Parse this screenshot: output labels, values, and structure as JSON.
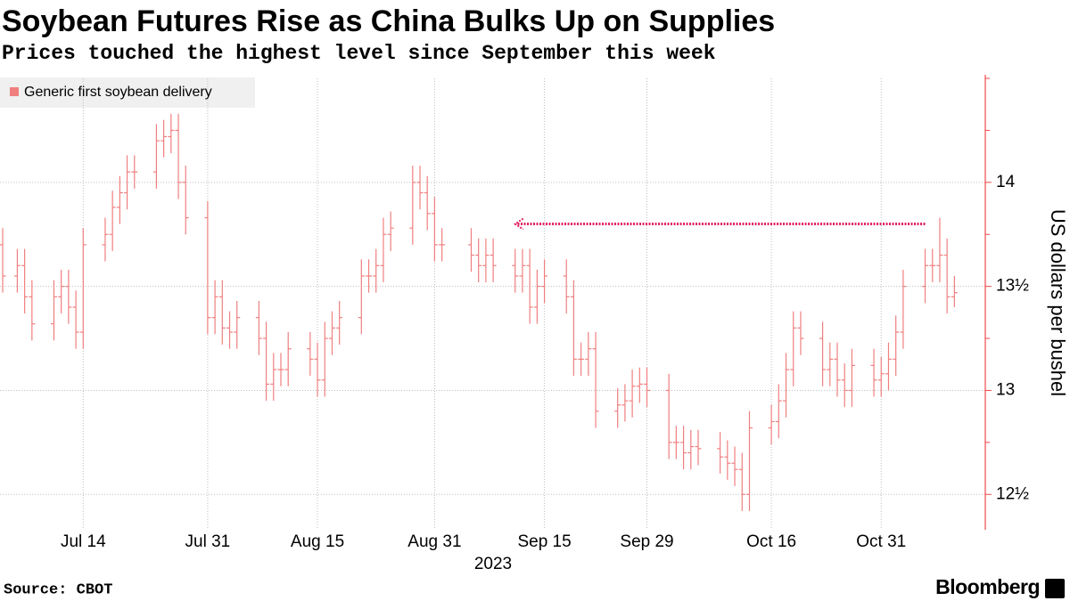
{
  "chart_data": {
    "type": "ohlc",
    "title": "Soybean Futures Rise as China Bulks Up on Supplies",
    "subtitle": "Prices touched the highest level since September this week",
    "y_axis_label": "US dollars per bushel",
    "x_axis_year": "2023",
    "source": "Source: CBOT",
    "brand": "Bloomberg",
    "legend": "top-left",
    "grid": true,
    "xlim": [
      "2023-07-03",
      "2023-11-13"
    ],
    "xticks": [
      {
        "value": "2023-07-14",
        "label": "Jul 14"
      },
      {
        "value": "2023-07-31",
        "label": "Jul 31"
      },
      {
        "value": "2023-08-15",
        "label": "Aug 15"
      },
      {
        "value": "2023-08-31",
        "label": "Aug 31"
      },
      {
        "value": "2023-09-15",
        "label": "Sep 15"
      },
      {
        "value": "2023-09-29",
        "label": "Sep 29"
      },
      {
        "value": "2023-10-16",
        "label": "Oct 16"
      },
      {
        "value": "2023-10-31",
        "label": "Oct 31"
      }
    ],
    "ylim": [
      12.33,
      14.5
    ],
    "yticks": [
      {
        "value": 12.5,
        "label": "12½"
      },
      13,
      {
        "value": 13.5,
        "label": "13½"
      },
      14
    ],
    "minor_yticks": [
      12.75,
      13.25,
      13.75,
      14.25,
      14.5
    ],
    "reference_arrow": {
      "value": 13.8,
      "x": [
        "2023-11-06",
        "2023-09-11"
      ],
      "color": "#e0245e"
    },
    "x": [
      "2023-07-03",
      "2023-07-05",
      "2023-07-06",
      "2023-07-07",
      "2023-07-10",
      "2023-07-11",
      "2023-07-12",
      "2023-07-13",
      "2023-07-14",
      "2023-07-17",
      "2023-07-18",
      "2023-07-19",
      "2023-07-20",
      "2023-07-21",
      "2023-07-24",
      "2023-07-25",
      "2023-07-26",
      "2023-07-27",
      "2023-07-28",
      "2023-07-31",
      "2023-08-01",
      "2023-08-02",
      "2023-08-03",
      "2023-08-04",
      "2023-08-07",
      "2023-08-08",
      "2023-08-09",
      "2023-08-10",
      "2023-08-11",
      "2023-08-14",
      "2023-08-15",
      "2023-08-16",
      "2023-08-17",
      "2023-08-18",
      "2023-08-21",
      "2023-08-22",
      "2023-08-23",
      "2023-08-24",
      "2023-08-25",
      "2023-08-28",
      "2023-08-29",
      "2023-08-30",
      "2023-08-31",
      "2023-09-01",
      "2023-09-05",
      "2023-09-06",
      "2023-09-07",
      "2023-09-08",
      "2023-09-11",
      "2023-09-12",
      "2023-09-13",
      "2023-09-14",
      "2023-09-15",
      "2023-09-18",
      "2023-09-19",
      "2023-09-20",
      "2023-09-21",
      "2023-09-22",
      "2023-09-25",
      "2023-09-26",
      "2023-09-27",
      "2023-09-28",
      "2023-09-29",
      "2023-10-02",
      "2023-10-03",
      "2023-10-04",
      "2023-10-05",
      "2023-10-06",
      "2023-10-09",
      "2023-10-10",
      "2023-10-11",
      "2023-10-12",
      "2023-10-13",
      "2023-10-16",
      "2023-10-17",
      "2023-10-18",
      "2023-10-19",
      "2023-10-20",
      "2023-10-23",
      "2023-10-24",
      "2023-10-25",
      "2023-10-26",
      "2023-10-27",
      "2023-10-30",
      "2023-10-31",
      "2023-11-01",
      "2023-11-02",
      "2023-11-03",
      "2023-11-06",
      "2023-11-07",
      "2023-11-08",
      "2023-11-09",
      "2023-11-10"
    ],
    "series": [
      {
        "name": "Generic first soybean delivery",
        "color": "#f07f7f",
        "open": [
          13.7,
          13.55,
          13.6,
          13.45,
          13.32,
          13.45,
          13.5,
          13.4,
          13.28,
          13.7,
          13.75,
          13.88,
          13.95,
          14.05,
          14.05,
          14.2,
          14.22,
          14.25,
          14.0,
          13.83,
          13.35,
          13.45,
          13.3,
          13.28,
          13.35,
          13.25,
          13.03,
          13.1,
          13.1,
          13.2,
          13.15,
          13.05,
          13.25,
          13.3,
          13.35,
          13.55,
          13.55,
          13.6,
          13.75,
          13.78,
          14.0,
          13.95,
          13.85,
          13.7,
          13.7,
          13.65,
          13.6,
          13.65,
          13.6,
          13.55,
          13.6,
          13.4,
          13.5,
          13.55,
          13.45,
          13.15,
          13.15,
          13.2,
          12.9,
          12.93,
          12.95,
          13.02,
          13.03,
          13.0,
          12.75,
          12.75,
          12.7,
          12.73,
          12.72,
          12.68,
          12.65,
          12.62,
          12.5,
          12.82,
          12.85,
          12.95,
          13.1,
          13.3,
          13.25,
          13.1,
          13.15,
          13.05,
          13.0,
          13.12,
          13.05,
          13.08,
          13.15,
          13.28,
          13.5,
          13.6,
          13.6,
          13.65,
          13.45
        ],
        "high": [
          13.78,
          13.68,
          13.68,
          13.53,
          13.53,
          13.58,
          13.58,
          13.48,
          13.78,
          13.83,
          13.96,
          14.03,
          14.13,
          14.13,
          14.28,
          14.3,
          14.33,
          14.33,
          14.08,
          13.91,
          13.53,
          13.53,
          13.38,
          13.43,
          13.43,
          13.33,
          13.18,
          13.18,
          13.28,
          13.28,
          13.23,
          13.33,
          13.38,
          13.43,
          13.63,
          13.63,
          13.68,
          13.83,
          13.86,
          14.08,
          14.08,
          14.03,
          13.93,
          13.78,
          13.78,
          13.73,
          13.73,
          13.73,
          13.68,
          13.68,
          13.68,
          13.58,
          13.63,
          13.63,
          13.53,
          13.23,
          13.28,
          13.28,
          13.01,
          13.03,
          13.1,
          13.11,
          13.11,
          13.08,
          12.83,
          12.83,
          12.81,
          12.81,
          12.8,
          12.76,
          12.73,
          12.7,
          12.9,
          12.93,
          13.03,
          13.18,
          13.38,
          13.38,
          13.33,
          13.23,
          13.23,
          13.13,
          13.2,
          13.2,
          13.16,
          13.23,
          13.36,
          13.58,
          13.68,
          13.68,
          13.83,
          13.73,
          13.55
        ],
        "low": [
          13.47,
          13.47,
          13.37,
          13.24,
          13.24,
          13.37,
          13.32,
          13.2,
          13.2,
          13.62,
          13.67,
          13.8,
          13.87,
          13.97,
          13.97,
          14.12,
          14.14,
          13.92,
          13.75,
          13.27,
          13.27,
          13.22,
          13.2,
          13.2,
          13.17,
          12.95,
          12.95,
          13.02,
          13.02,
          13.07,
          12.97,
          12.97,
          13.17,
          13.22,
          13.27,
          13.47,
          13.47,
          13.52,
          13.67,
          13.7,
          13.87,
          13.77,
          13.62,
          13.62,
          13.57,
          13.52,
          13.52,
          13.52,
          13.47,
          13.47,
          13.32,
          13.32,
          13.42,
          13.37,
          13.07,
          13.07,
          13.07,
          12.82,
          12.82,
          12.85,
          12.87,
          12.94,
          12.92,
          12.67,
          12.67,
          12.62,
          12.62,
          12.64,
          12.6,
          12.57,
          12.54,
          12.42,
          12.42,
          12.74,
          12.77,
          12.87,
          13.02,
          13.17,
          13.02,
          13.02,
          12.97,
          12.92,
          12.92,
          12.97,
          12.97,
          13.0,
          13.07,
          13.2,
          13.42,
          13.52,
          13.52,
          13.37,
          13.4
        ],
        "close": [
          13.55,
          13.6,
          13.45,
          13.32,
          13.45,
          13.5,
          13.4,
          13.28,
          13.7,
          13.75,
          13.88,
          13.95,
          14.05,
          14.05,
          14.2,
          14.22,
          14.25,
          14.0,
          13.83,
          13.35,
          13.45,
          13.3,
          13.28,
          13.35,
          13.25,
          13.03,
          13.1,
          13.1,
          13.2,
          13.15,
          13.05,
          13.25,
          13.3,
          13.35,
          13.55,
          13.55,
          13.6,
          13.75,
          13.78,
          14.0,
          13.95,
          13.85,
          13.7,
          13.7,
          13.65,
          13.6,
          13.65,
          13.6,
          13.55,
          13.6,
          13.4,
          13.5,
          13.55,
          13.45,
          13.15,
          13.15,
          13.2,
          12.9,
          12.93,
          12.95,
          13.02,
          13.03,
          13.0,
          12.75,
          12.75,
          12.7,
          12.73,
          12.72,
          12.68,
          12.65,
          12.62,
          12.5,
          12.82,
          12.85,
          12.95,
          13.1,
          13.3,
          13.25,
          13.1,
          13.15,
          13.05,
          13.0,
          13.12,
          13.05,
          13.08,
          13.15,
          13.28,
          13.5,
          13.6,
          13.6,
          13.65,
          13.45,
          13.47
        ]
      }
    ]
  }
}
